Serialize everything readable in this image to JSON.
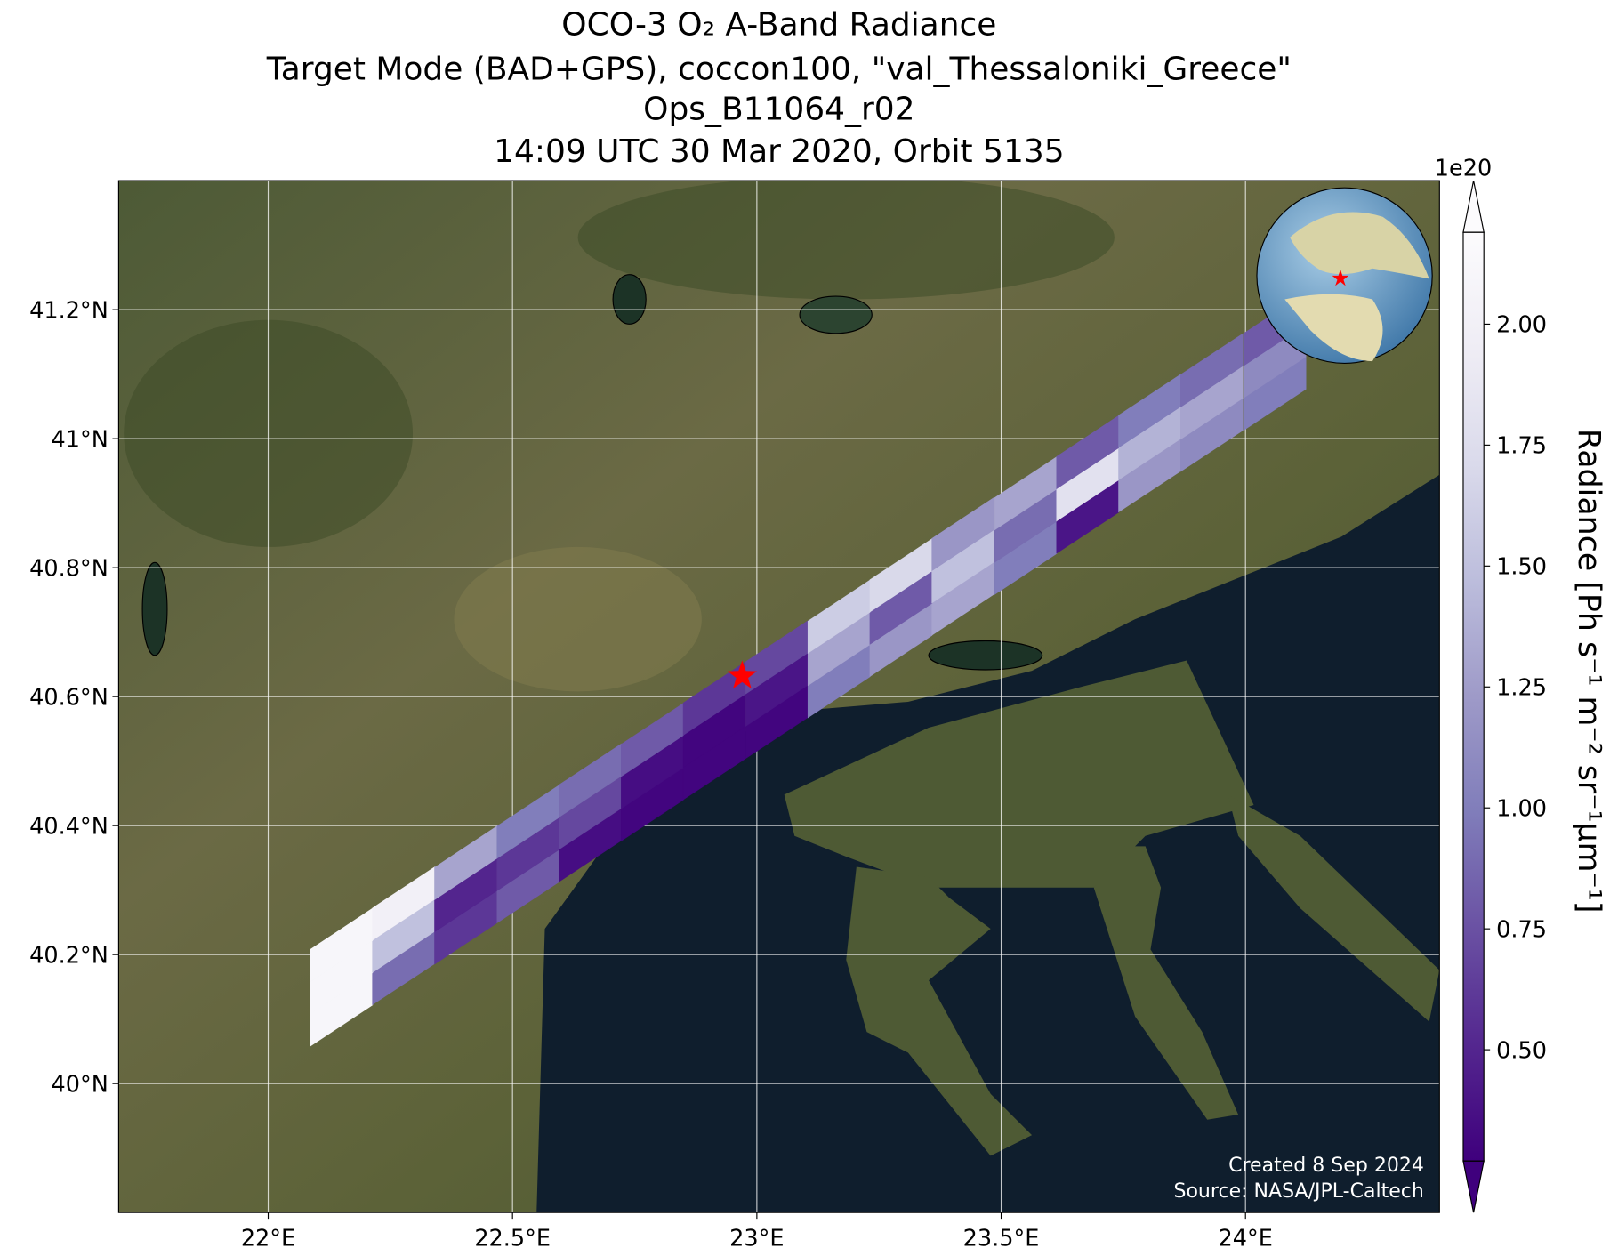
{
  "chart_data": {
    "type": "swath",
    "title_lines": [
      "OCO-3 O₂ A-Band Radiance",
      "Target Mode (BAD+GPS), coccon100, \"val_Thessaloniki_Greece\"",
      "Ops_B11064_r02",
      "14:09 UTC 30 Mar 2020, Orbit 5135"
    ],
    "xlim": [
      21.694,
      24.397
    ],
    "ylim": [
      39.8,
      41.4
    ],
    "xticks": [
      {
        "value": 22,
        "label": "22°E"
      },
      {
        "value": 22.5,
        "label": "22.5°E"
      },
      {
        "value": 23,
        "label": "23°E"
      },
      {
        "value": 23.5,
        "label": "23.5°E"
      },
      {
        "value": 24,
        "label": "24°E"
      }
    ],
    "yticks": [
      {
        "value": 40,
        "label": "40°N"
      },
      {
        "value": 40.2,
        "label": "40.2°N"
      },
      {
        "value": 40.4,
        "label": "40.4°N"
      },
      {
        "value": 40.6,
        "label": "40.6°N"
      },
      {
        "value": 40.8,
        "label": "40.8°N"
      },
      {
        "value": 41,
        "label": "41°N"
      },
      {
        "value": 41.2,
        "label": "41.2°N"
      }
    ],
    "grid": true,
    "track_lon": [
      22.15,
      22.277,
      22.404,
      22.532,
      22.659,
      22.786,
      22.913,
      23.041,
      23.168,
      23.295,
      23.422,
      23.55,
      23.677,
      23.804,
      23.931,
      24.06
    ],
    "track_lat": [
      40.165,
      40.229,
      40.292,
      40.356,
      40.42,
      40.483,
      40.547,
      40.611,
      40.674,
      40.738,
      40.802,
      40.865,
      40.929,
      40.993,
      41.056,
      41.12
    ],
    "series": [
      {
        "name": "footprint 1",
        "values": [
          2.1,
          0.9,
          0.6,
          0.8,
          0.35,
          0.3,
          0.3,
          0.3,
          1.0,
          1.2,
          1.3,
          1.0,
          0.4,
          1.2,
          1.1,
          1.0
        ]
      },
      {
        "name": "footprint 2",
        "values": [
          2.1,
          1.5,
          0.5,
          0.6,
          0.7,
          0.35,
          0.3,
          0.4,
          1.3,
          0.8,
          1.5,
          0.9,
          1.8,
          1.4,
          1.3,
          1.1
        ]
      },
      {
        "name": "footprint 3",
        "values": [
          2.1,
          2.0,
          1.3,
          1.0,
          0.9,
          0.8,
          0.6,
          0.7,
          1.6,
          1.7,
          1.2,
          1.3,
          0.8,
          1.0,
          0.9,
          0.8
        ]
      }
    ],
    "colormap": [
      "#3f007d",
      "#54278f",
      "#6a51a3",
      "#807dba",
      "#9e9ac8",
      "#bcbddc",
      "#dadaeb",
      "#efedf5",
      "#fcfbfd"
    ],
    "clim": [
      0.27,
      2.19
    ],
    "cticks": [
      {
        "value": 0.5,
        "label": "0.50"
      },
      {
        "value": 0.75,
        "label": "0.75"
      },
      {
        "value": 1.0,
        "label": "1.00"
      },
      {
        "value": 1.25,
        "label": "1.25"
      },
      {
        "value": 1.5,
        "label": "1.50"
      },
      {
        "value": 1.75,
        "label": "1.75"
      },
      {
        "value": 2.0,
        "label": "2.00"
      }
    ],
    "colorbar_exponent": "1e20",
    "colorbar_label": "Radiance [Ph s⁻¹ m⁻² sr⁻¹μm⁻¹]",
    "target": {
      "lon": 22.97,
      "lat": 40.632,
      "color": "#ff0000"
    },
    "credits": [
      "Created 8 Sep 2024",
      "Source: NASA/JPL-Caltech"
    ]
  }
}
